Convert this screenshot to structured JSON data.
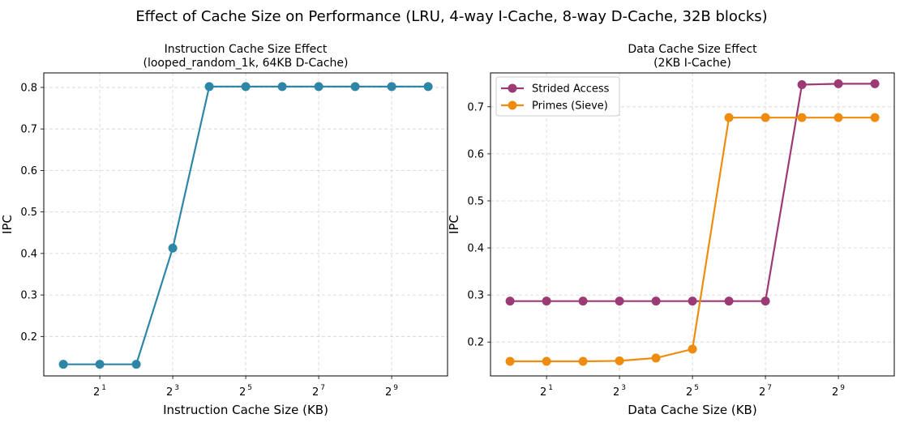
{
  "figure_title": "Effect of Cache Size on Performance (LRU, 4-way I-Cache, 8-way D-Cache, 32B blocks)",
  "chart_data": [
    {
      "type": "line",
      "title_line1": "Instruction Cache Size Effect",
      "title_line2": "(looped_random_1k, 64KB D-Cache)",
      "xlabel": "Instruction Cache Size (KB)",
      "ylabel": "IPC",
      "x_scale": "log2",
      "x": [
        1,
        2,
        4,
        8,
        16,
        32,
        64,
        128,
        256,
        512,
        1024
      ],
      "xlim": [
        0.69,
        1480
      ],
      "ylim": [
        0.105,
        0.835
      ],
      "xtick_exponents": [
        "1",
        "3",
        "5",
        "7",
        "9"
      ],
      "yticks": [
        "0.2",
        "0.3",
        "0.4",
        "0.5",
        "0.6",
        "0.7",
        "0.8"
      ],
      "grid": true,
      "series": [
        {
          "color": "#2e86a7",
          "values": [
            0.133,
            0.133,
            0.133,
            0.413,
            0.802,
            0.802,
            0.802,
            0.802,
            0.802,
            0.802,
            0.802
          ]
        }
      ]
    },
    {
      "type": "line",
      "title_line1": "Data Cache Size Effect",
      "title_line2": "(2KB I-Cache)",
      "xlabel": "Data Cache Size (KB)",
      "ylabel": "IPC",
      "x_scale": "log2",
      "x": [
        1,
        2,
        4,
        8,
        16,
        32,
        64,
        128,
        256,
        512,
        1024
      ],
      "xlim": [
        0.69,
        1480
      ],
      "ylim": [
        0.128,
        0.772
      ],
      "xtick_exponents": [
        "1",
        "3",
        "5",
        "7",
        "9"
      ],
      "yticks": [
        "0.2",
        "0.3",
        "0.4",
        "0.5",
        "0.6",
        "0.7"
      ],
      "grid": true,
      "legend_position": "top-left",
      "series": [
        {
          "name": "Strided Access",
          "color": "#9b3a75",
          "values": [
            0.287,
            0.287,
            0.287,
            0.287,
            0.287,
            0.287,
            0.287,
            0.287,
            0.747,
            0.749,
            0.749
          ]
        },
        {
          "name": "Primes (Sieve)",
          "color": "#ef8c0f",
          "values": [
            0.159,
            0.159,
            0.159,
            0.16,
            0.166,
            0.185,
            0.677,
            0.677,
            0.677,
            0.677,
            0.677
          ]
        }
      ]
    }
  ]
}
